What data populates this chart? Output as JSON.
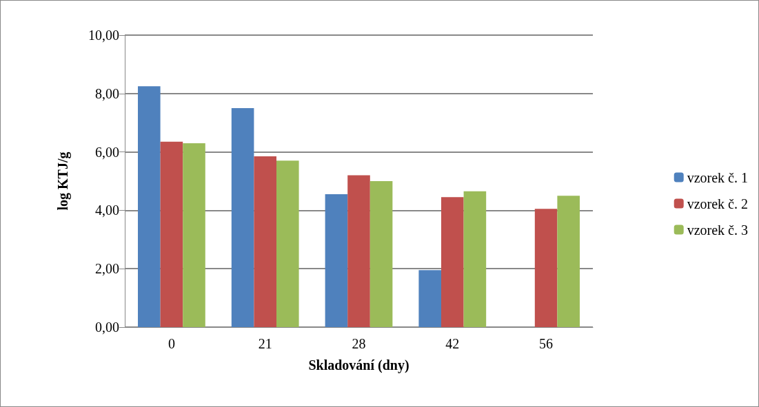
{
  "chart_data": {
    "type": "bar",
    "xlabel": "Skladování (dny)",
    "ylabel": "log KTJ/g",
    "categories": [
      "0",
      "21",
      "28",
      "42",
      "56"
    ],
    "series": [
      {
        "name": "vzorek č. 1",
        "color": "#4f81bd",
        "values": [
          8.25,
          7.5,
          4.55,
          1.95,
          0
        ]
      },
      {
        "name": "vzorek č. 2",
        "color": "#c0504d",
        "values": [
          6.35,
          5.85,
          5.2,
          4.45,
          4.05
        ]
      },
      {
        "name": "vzorek č. 3",
        "color": "#9bbb59",
        "values": [
          6.3,
          5.7,
          5.0,
          4.65,
          4.5
        ]
      }
    ],
    "ylim": [
      0,
      10
    ],
    "yticks": [
      {
        "value": 0,
        "label": "0,00"
      },
      {
        "value": 2,
        "label": "2,00"
      },
      {
        "value": 4,
        "label": "4,00"
      },
      {
        "value": 6,
        "label": "6,00"
      },
      {
        "value": 8,
        "label": "8,00"
      },
      {
        "value": 10,
        "label": "10,00"
      }
    ],
    "grid": "y",
    "legend": "right"
  }
}
